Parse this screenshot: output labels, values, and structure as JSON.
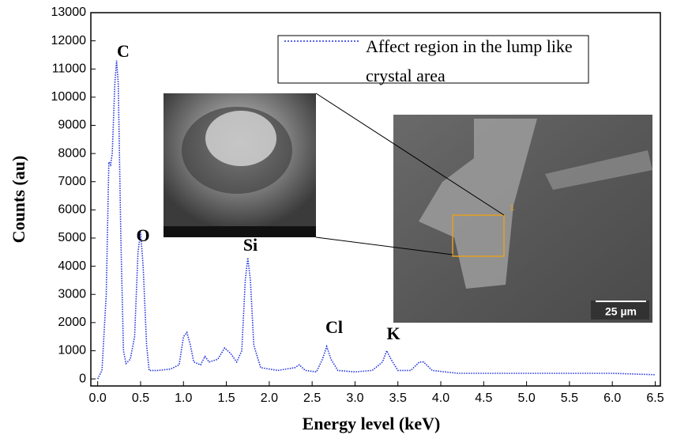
{
  "chart_data": {
    "type": "line",
    "x_label": "Energy level (keV)",
    "y_label": "Counts (au)",
    "xlim": [
      -0.08,
      6.56
    ],
    "ylim": [
      -250,
      13000
    ],
    "xticks": [
      {
        "value": 0,
        "label": "0.0"
      },
      {
        "value": 0.5,
        "label": "0.5"
      },
      {
        "value": 1,
        "label": "1.0"
      },
      {
        "value": 1.5,
        "label": "1.5"
      },
      {
        "value": 2,
        "label": "2.0"
      },
      {
        "value": 2.5,
        "label": "2.5"
      },
      {
        "value": 3,
        "label": "3.0"
      },
      {
        "value": 3.5,
        "label": "3.5"
      },
      {
        "value": 4,
        "label": "4.0"
      },
      {
        "value": 4.5,
        "label": "4.5"
      },
      {
        "value": 5,
        "label": "5.0"
      },
      {
        "value": 5.5,
        "label": "5.5"
      },
      {
        "value": 6,
        "label": "6.0"
      },
      {
        "value": 6.5,
        "label": "6.5"
      }
    ],
    "yticks": [
      0,
      1000,
      2000,
      3000,
      4000,
      5000,
      6000,
      7000,
      8000,
      9000,
      10000,
      11000,
      12000,
      13000
    ],
    "x": [
      0.0,
      0.05,
      0.1,
      0.13,
      0.15,
      0.17,
      0.2,
      0.22,
      0.24,
      0.27,
      0.3,
      0.33,
      0.38,
      0.43,
      0.47,
      0.5,
      0.53,
      0.57,
      0.6,
      0.7,
      0.85,
      0.95,
      1.0,
      1.04,
      1.08,
      1.12,
      1.2,
      1.25,
      1.3,
      1.4,
      1.48,
      1.55,
      1.62,
      1.68,
      1.72,
      1.75,
      1.78,
      1.82,
      1.9,
      2.1,
      2.3,
      2.35,
      2.42,
      2.55,
      2.62,
      2.67,
      2.72,
      2.8,
      3.0,
      3.2,
      3.32,
      3.37,
      3.42,
      3.5,
      3.65,
      3.75,
      3.8,
      3.9,
      4.2,
      5.0,
      6.0,
      6.5
    ],
    "series": [
      {
        "name": "Affect region in the lump like crystal area",
        "color": "#2233dd",
        "values": [
          0,
          300,
          3000,
          7700,
          7600,
          8000,
          10500,
          11300,
          10500,
          5000,
          1000,
          550,
          700,
          1500,
          4500,
          5200,
          4000,
          1200,
          300,
          300,
          350,
          500,
          1500,
          1650,
          1200,
          600,
          500,
          800,
          600,
          700,
          1100,
          900,
          600,
          1000,
          3500,
          4300,
          3500,
          1200,
          400,
          300,
          400,
          500,
          300,
          250,
          700,
          1150,
          700,
          300,
          250,
          300,
          600,
          1000,
          700,
          300,
          300,
          600,
          600,
          300,
          200,
          200,
          200,
          150
        ]
      }
    ],
    "annotations": [
      "C",
      "O",
      "Si",
      "Cl",
      "K"
    ],
    "inset_marker": "1",
    "scale_bar": "25 µm"
  }
}
